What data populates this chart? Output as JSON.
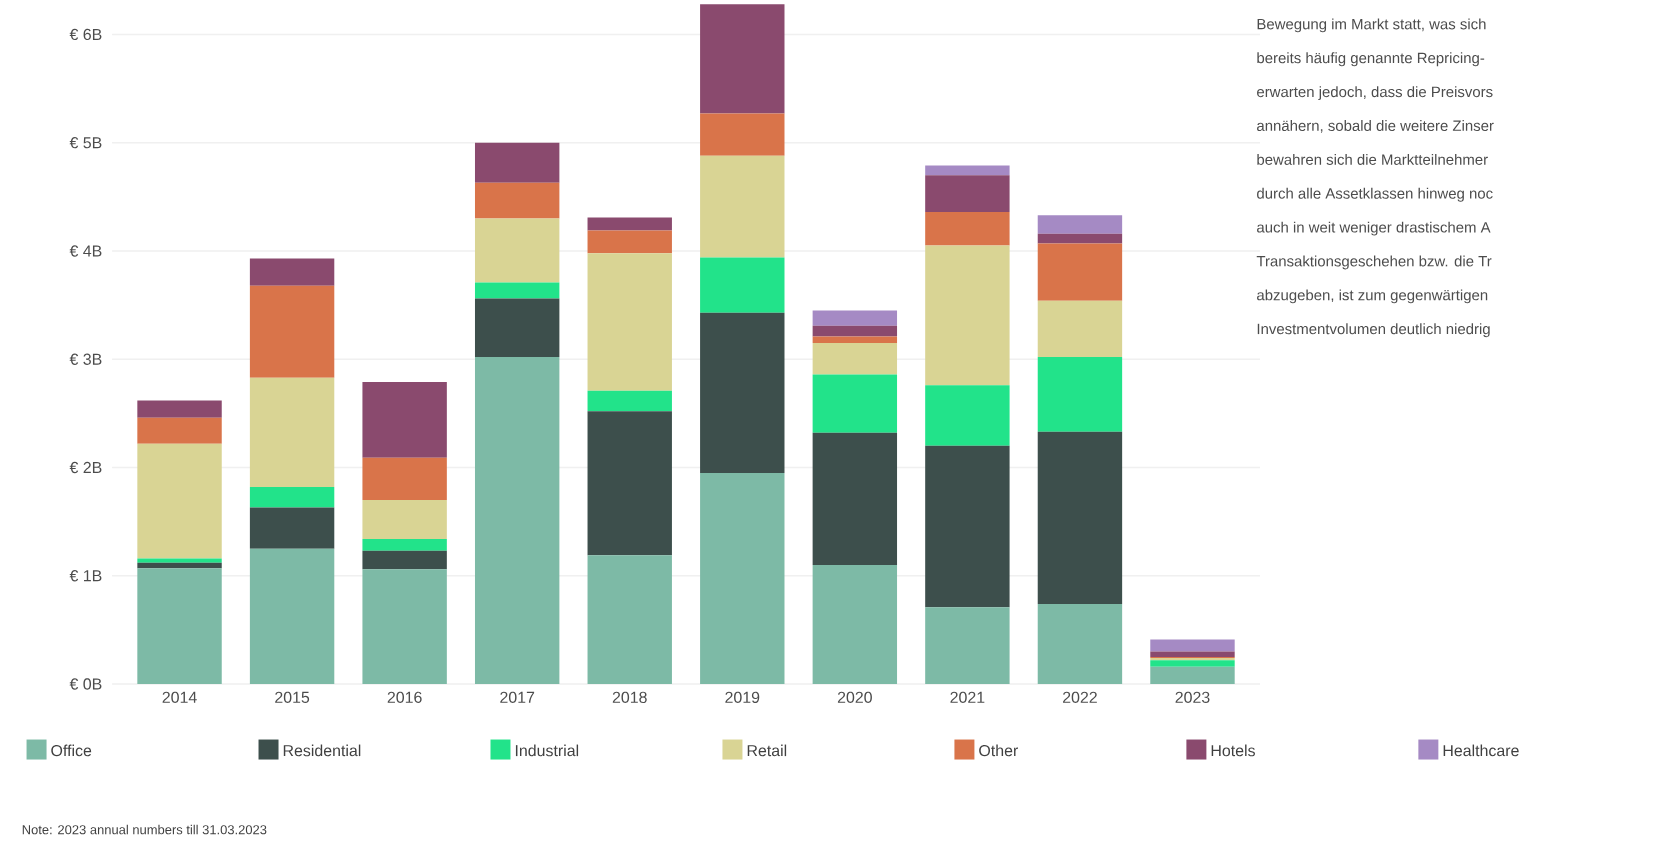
{
  "chart_data": {
    "type": "bar",
    "stacked": true,
    "categories": [
      "2014",
      "2015",
      "2016",
      "2017",
      "2018",
      "2019",
      "2020",
      "2021",
      "2022",
      "2023"
    ],
    "series": [
      {
        "name": "Office",
        "color": "#7dbaa6",
        "values": [
          1.07,
          1.25,
          1.06,
          3.02,
          1.19,
          1.95,
          1.1,
          0.71,
          0.74,
          0.16
        ]
      },
      {
        "name": "Residential",
        "color": "#3d4f4c",
        "values": [
          0.05,
          0.38,
          0.17,
          0.54,
          1.33,
          1.48,
          1.22,
          1.49,
          1.59,
          0.0
        ]
      },
      {
        "name": "Industrial",
        "color": "#22e38a",
        "values": [
          0.04,
          0.19,
          0.11,
          0.15,
          0.19,
          0.51,
          0.54,
          0.56,
          0.69,
          0.06
        ]
      },
      {
        "name": "Retail",
        "color": "#d9d494",
        "values": [
          1.06,
          1.01,
          0.36,
          0.59,
          1.27,
          0.94,
          0.29,
          1.29,
          0.52,
          0.02
        ]
      },
      {
        "name": "Other",
        "color": "#d9744a",
        "values": [
          0.24,
          0.85,
          0.39,
          0.33,
          0.21,
          0.39,
          0.06,
          0.31,
          0.53,
          0.01
        ]
      },
      {
        "name": "Hotels",
        "color": "#8a4a6e",
        "values": [
          0.16,
          0.25,
          0.7,
          0.37,
          0.12,
          1.01,
          0.1,
          0.34,
          0.09,
          0.05
        ]
      },
      {
        "name": "Healthcare",
        "color": "#a58ac4",
        "values": [
          null,
          null,
          null,
          null,
          null,
          null,
          0.14,
          0.09,
          0.17,
          0.11
        ]
      }
    ],
    "ylim": [
      0,
      6.3
    ],
    "yticks": [
      {
        "value": 0,
        "label": "€ 0B"
      },
      {
        "value": 1,
        "label": "€ 1B"
      },
      {
        "value": 2,
        "label": "€ 2B"
      },
      {
        "value": 3,
        "label": "€ 3B"
      },
      {
        "value": 4,
        "label": "€ 4B"
      },
      {
        "value": 5,
        "label": "€ 5B"
      },
      {
        "value": 6,
        "label": "€ 6B"
      }
    ],
    "grid": "y",
    "legend": "bottom",
    "annotations": [
      "Note: 2023 annual numbers till 31.03.2023",
      "Bewegung im Markt statt, was sich",
      "bereits häufig genannte Repricing-",
      "erwarten jedoch, dass die Preisvors",
      "annähern, sobald die weitere Zinser",
      "bewahren sich die Marktteilnehmer",
      "durch alle Assetklassen hinweg noc",
      "auch in weit weniger drastischem A",
      "Transaktionsgeschehen bzw. die Tr",
      "abzugeben, ist zum gegenwärtigen",
      "Investmentvolumen deutlich niedrig"
    ]
  }
}
